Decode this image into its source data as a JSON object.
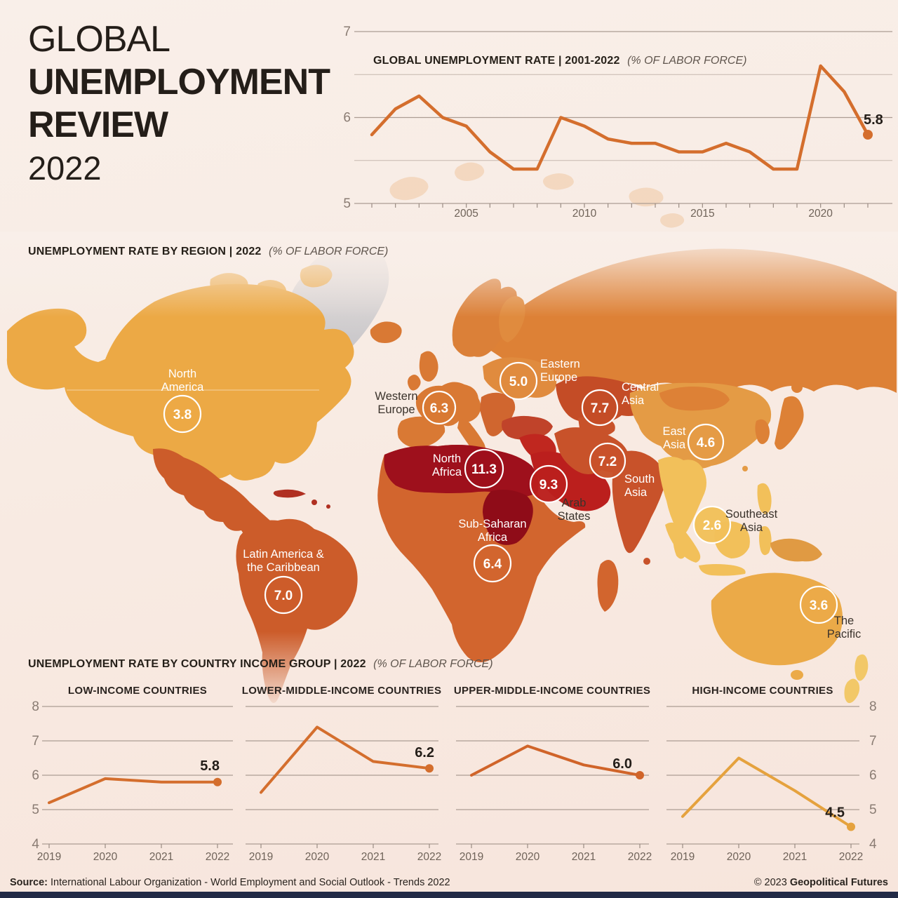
{
  "title_block": {
    "line1": "GLOBAL",
    "line2": "UNEMPLOYMENT",
    "line3": "REVIEW",
    "line4": "2022"
  },
  "headers": {
    "map_title": "UNEMPLOYMENT RATE BY REGION | 2022",
    "map_subtitle": "(% OF LABOR FORCE)",
    "income_title": "UNEMPLOYMENT RATE BY COUNTRY INCOME GROUP | 2022",
    "income_subtitle": "(% OF LABOR FORCE)"
  },
  "accent_colors": {
    "line_orange": "#d46e2d",
    "line_amber": "#e5a23e",
    "footer_bar_navy": "#222a46"
  },
  "chart_data": [
    {
      "id": "global-rate",
      "type": "line",
      "title": "GLOBAL UNEMPLOYMENT RATE | 2001-2022",
      "subtitle": "(% OF LABOR FORCE)",
      "x": [
        2001,
        2002,
        2003,
        2004,
        2005,
        2006,
        2007,
        2008,
        2009,
        2010,
        2011,
        2012,
        2013,
        2014,
        2015,
        2016,
        2017,
        2018,
        2019,
        2020,
        2021,
        2022
      ],
      "values": [
        5.8,
        6.1,
        6.25,
        6.0,
        5.9,
        5.6,
        5.4,
        5.4,
        6.0,
        5.9,
        5.75,
        5.7,
        5.7,
        5.6,
        5.6,
        5.7,
        5.6,
        5.4,
        5.4,
        6.6,
        6.3,
        5.8
      ],
      "ylim": [
        5,
        7
      ],
      "ygrid": [
        5,
        5.5,
        6,
        6.5,
        7
      ],
      "yticks": [
        5,
        6,
        7
      ],
      "xticks": [
        2005,
        2010,
        2015,
        2020
      ],
      "end_label": "5.8",
      "color": "#d46e2d",
      "grid": true,
      "legend": "none"
    },
    {
      "id": "region-map",
      "type": "map",
      "title": "UNEMPLOYMENT RATE BY REGION | 2022 (% OF LABOR FORCE)",
      "regions": [
        {
          "id": "north-america",
          "label": "North\nAmerica",
          "value": "3.8",
          "color": "#eca945",
          "label_color": "light"
        },
        {
          "id": "latin-america",
          "label": "Latin America &\nthe Caribbean",
          "value": "7.0",
          "color": "#cc5c2a",
          "label_color": "light"
        },
        {
          "id": "western-europe",
          "label": "Western\nEurope",
          "value": "6.3",
          "color": "#d97934",
          "label_color": "dark"
        },
        {
          "id": "eastern-europe",
          "label": "Eastern\nEurope",
          "value": "5.0",
          "color": "#e08b3e",
          "label_color": "light"
        },
        {
          "id": "central-asia",
          "label": "Central\nAsia",
          "value": "7.7",
          "color": "#c44c26",
          "label_color": "light"
        },
        {
          "id": "north-africa",
          "label": "North\nAfrica",
          "value": "11.3",
          "color": "#9e101c",
          "label_color": "light"
        },
        {
          "id": "arab-states",
          "label": "Arab\nStates",
          "value": "9.3",
          "color": "#bb1f1d",
          "label_color": "dark"
        },
        {
          "id": "south-asia",
          "label": "South\nAsia",
          "value": "7.2",
          "color": "#c8522a",
          "label_color": "light"
        },
        {
          "id": "sub-saharan-africa",
          "label": "Sub-Saharan\nAfrica",
          "value": "6.4",
          "color": "#d2652e",
          "label_color": "light"
        },
        {
          "id": "east-asia",
          "label": "East\nAsia",
          "value": "4.6",
          "color": "#e49b45",
          "label_color": "light"
        },
        {
          "id": "southeast-asia",
          "label": "Southeast\nAsia",
          "value": "2.6",
          "color": "#f2c05a",
          "label_color": "dark"
        },
        {
          "id": "the-pacific",
          "label": "The\nPacific",
          "value": "3.6",
          "color": "#ebaa48",
          "label_color": "dark"
        }
      ]
    },
    {
      "id": "low-income",
      "type": "line",
      "title": "LOW-INCOME COUNTRIES",
      "x": [
        2019,
        2020,
        2021,
        2022
      ],
      "values": [
        5.2,
        5.9,
        5.8,
        5.8
      ],
      "ylim": [
        4,
        8
      ],
      "ygrid": [
        4,
        5,
        6,
        7,
        8
      ],
      "yticks": [
        4,
        5,
        6,
        7,
        8
      ],
      "xticks": [
        2019,
        2020,
        2021,
        2022
      ],
      "end_label": "5.8",
      "color": "#d46e2d",
      "grid": true
    },
    {
      "id": "lower-middle-income",
      "type": "line",
      "title": "LOWER-MIDDLE-INCOME COUNTRIES",
      "x": [
        2019,
        2020,
        2021,
        2022
      ],
      "values": [
        5.5,
        7.4,
        6.4,
        6.2
      ],
      "ylim": [
        4,
        8
      ],
      "ygrid": [
        4,
        5,
        6,
        7,
        8
      ],
      "yticks": [],
      "xticks": [
        2019,
        2020,
        2021,
        2022
      ],
      "end_label": "6.2",
      "color": "#d46e2d",
      "grid": true
    },
    {
      "id": "upper-middle-income",
      "type": "line",
      "title": "UPPER-MIDDLE-INCOME COUNTRIES",
      "x": [
        2019,
        2020,
        2021,
        2022
      ],
      "values": [
        6.0,
        6.85,
        6.3,
        6.0
      ],
      "ylim": [
        4,
        8
      ],
      "ygrid": [
        4,
        5,
        6,
        7,
        8
      ],
      "yticks": [],
      "xticks": [
        2019,
        2020,
        2021,
        2022
      ],
      "end_label": "6.0",
      "color": "#d06429",
      "grid": true
    },
    {
      "id": "high-income",
      "type": "line",
      "title": "HIGH-INCOME COUNTRIES",
      "x": [
        2019,
        2020,
        2021,
        2022
      ],
      "values": [
        4.8,
        6.5,
        5.55,
        4.5
      ],
      "ylim": [
        4,
        8
      ],
      "ygrid": [
        4,
        5,
        6,
        7,
        8
      ],
      "yticks": [
        4,
        5,
        6,
        7,
        8
      ],
      "xticks": [
        2019,
        2020,
        2021,
        2022
      ],
      "end_label": "4.5",
      "color": "#e5a23e",
      "grid": true
    }
  ],
  "footer": {
    "source_label": "Source:",
    "source_text": " International Labour Organization - World Employment and Social Outlook - Trends 2022",
    "copyright_prefix": "© 2023 ",
    "copyright_bold": "Geopolitical Futures"
  }
}
